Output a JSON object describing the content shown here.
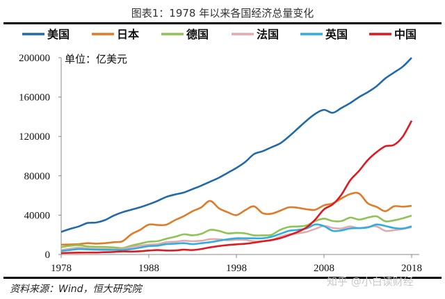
{
  "chart_data": {
    "type": "line",
    "title": "图表1：1978 年以来各国经济总量变化",
    "unit_label": "单位：亿美元",
    "source": "资料来源：Wind，恒大研究院",
    "watermark": "知乎 @小白读财经",
    "xlabel": "",
    "ylabel": "",
    "xlim": [
      1978,
      2018
    ],
    "ylim": [
      0,
      200000
    ],
    "x_ticks": [
      "1978",
      "1988",
      "1998",
      "2008",
      "2018"
    ],
    "y_ticks": [
      "0",
      "40000",
      "80000",
      "120000",
      "160000",
      "200000"
    ],
    "grid": false,
    "legend_position": "top",
    "x": [
      1978,
      1979,
      1980,
      1981,
      1982,
      1983,
      1984,
      1985,
      1986,
      1987,
      1988,
      1989,
      1990,
      1991,
      1992,
      1993,
      1994,
      1995,
      1996,
      1997,
      1998,
      1999,
      2000,
      2001,
      2002,
      2003,
      2004,
      2005,
      2006,
      2007,
      2008,
      2009,
      2010,
      2011,
      2012,
      2013,
      2014,
      2015,
      2016,
      2017,
      2018
    ],
    "series": [
      {
        "name": "美国",
        "color": "#1f6aab",
        "values": [
          23000,
          26000,
          28500,
          32000,
          32500,
          35000,
          39500,
          43000,
          45500,
          48000,
          51000,
          54500,
          58500,
          61000,
          63000,
          66500,
          70000,
          74000,
          78000,
          83000,
          88000,
          94000,
          102000,
          105000,
          109000,
          113000,
          120000,
          128000,
          136000,
          143000,
          147000,
          144000,
          149000,
          154000,
          160000,
          165000,
          171000,
          179000,
          185000,
          191000,
          200000
        ]
      },
      {
        "name": "日本",
        "color": "#e07b27",
        "values": [
          10000,
          10200,
          10500,
          11500,
          11000,
          11500,
          12500,
          13500,
          20500,
          25000,
          30400,
          30000,
          30300,
          35000,
          39000,
          44000,
          48000,
          54500,
          47000,
          43000,
          40000,
          45000,
          49000,
          42000,
          41500,
          44500,
          48000,
          47500,
          46000,
          45500,
          50000,
          52000,
          57000,
          61500,
          62000,
          52000,
          48500,
          44000,
          49000,
          48600,
          49500
        ]
      },
      {
        "name": "德国",
        "color": "#8dc454",
        "values": [
          7500,
          8800,
          9500,
          8200,
          7800,
          7600,
          7200,
          6500,
          9000,
          11000,
          13000,
          13500,
          16000,
          18000,
          20500,
          19500,
          21000,
          25000,
          24000,
          21500,
          22000,
          21500,
          19500,
          19500,
          20000,
          25000,
          28000,
          28500,
          29500,
          34000,
          36500,
          34000,
          34000,
          37500,
          35500,
          37500,
          38800,
          33800,
          34700,
          36800,
          39500
        ]
      },
      {
        "name": "法国",
        "color": "#e3a9ad",
        "values": [
          4500,
          5800,
          7000,
          6200,
          5800,
          5500,
          5300,
          5500,
          7500,
          9000,
          10000,
          10500,
          12500,
          13000,
          14000,
          13500,
          14000,
          15500,
          15500,
          14500,
          15000,
          14800,
          13500,
          13500,
          14500,
          18000,
          20500,
          21500,
          23000,
          26000,
          29000,
          27000,
          26500,
          28500,
          26800,
          28000,
          28500,
          24000,
          24700,
          25900,
          27800
        ]
      },
      {
        "name": "英国",
        "color": "#2eaee0",
        "values": [
          3500,
          4500,
          5500,
          5200,
          4900,
          4800,
          4600,
          4600,
          5500,
          7000,
          8500,
          9000,
          10500,
          11000,
          11500,
          10500,
          11500,
          12500,
          14000,
          15500,
          16500,
          16500,
          16500,
          16500,
          18000,
          21000,
          24000,
          25000,
          26500,
          30500,
          28800,
          24000,
          24500,
          26500,
          26800,
          27500,
          30500,
          29000,
          26900,
          26400,
          28600
        ]
      },
      {
        "name": "中国",
        "color": "#e0181f",
        "values": [
          1500,
          1700,
          1900,
          2000,
          2000,
          2300,
          2600,
          3100,
          3000,
          3300,
          4000,
          4500,
          4000,
          4100,
          4900,
          4500,
          5600,
          7300,
          8600,
          9600,
          10300,
          10900,
          12000,
          13400,
          14700,
          16600,
          19600,
          23000,
          27500,
          35500,
          45900,
          51000,
          61000,
          75500,
          85000,
          96000,
          104000,
          110000,
          111500,
          120000,
          136000
        ]
      }
    ]
  }
}
